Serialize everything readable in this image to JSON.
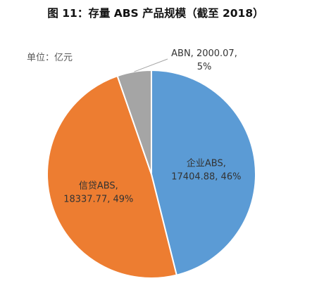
{
  "title": "图 11：存量 ABS 产品规模（截至 2018）",
  "unit": "单位：亿元",
  "chart_data": {
    "type": "pie",
    "slices": [
      {
        "name": "企业ABS",
        "value": 17404.88,
        "pct_label": "46%",
        "value_label": "17404.88",
        "color": "#5b9bd5"
      },
      {
        "name": "信贷ABS",
        "value": 18337.77,
        "pct_label": "49%",
        "value_label": "18337.77",
        "color": "#ed7d31"
      },
      {
        "name": "ABN",
        "value": 2000.07,
        "pct_label": "5%",
        "value_label": "2000.07",
        "color": "#a5a5a5"
      }
    ]
  }
}
